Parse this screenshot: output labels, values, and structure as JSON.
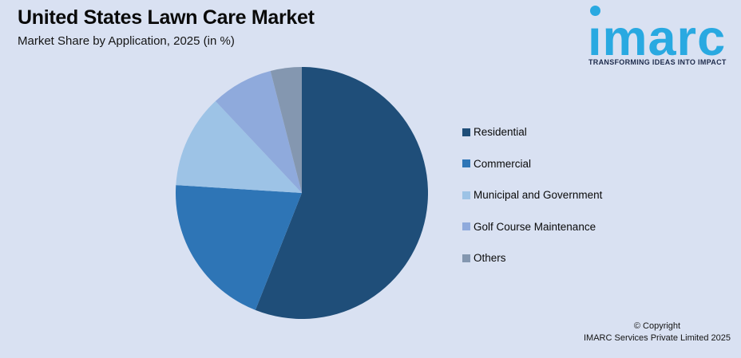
{
  "page": {
    "background_color": "#D9E1F2"
  },
  "header": {
    "title": "United States Lawn Care Market",
    "subtitle": "Market Share by Application, 2025 (in %)"
  },
  "logo": {
    "brand": "imarc",
    "brand_display": "ımarc",
    "tagline": "TRANSFORMING IDEAS INTO IMPACT",
    "brand_color": "#29A9E1",
    "tagline_color": "#1E2B4C"
  },
  "chart_data": {
    "type": "pie",
    "title": "United States Lawn Care Market",
    "subtitle": "Market Share by Application, 2025 (in %)",
    "categories": [
      "Residential",
      "Commercial",
      "Municipal and Government",
      "Golf Course Maintenance",
      "Others"
    ],
    "values": [
      56,
      20,
      12,
      8,
      4
    ],
    "unit": "%",
    "colors": [
      "#1F4E79",
      "#2E75B6",
      "#9DC3E6",
      "#8FAADC",
      "#8497B0"
    ],
    "start_angle_deg": 0,
    "direction": "clockwise",
    "legend_position": "right",
    "data_labels": false
  },
  "legend": {
    "items": [
      {
        "label": "Residential",
        "color": "#1F4E79"
      },
      {
        "label": "Commercial",
        "color": "#2E75B6"
      },
      {
        "label": "Municipal and Government",
        "color": "#9DC3E6"
      },
      {
        "label": "Golf Course Maintenance",
        "color": "#8FAADC"
      },
      {
        "label": "Others",
        "color": "#8497B0"
      }
    ]
  },
  "footer": {
    "copyright_line1": "© Copyright",
    "copyright_line2": "IMARC Services Private Limited 2025"
  }
}
